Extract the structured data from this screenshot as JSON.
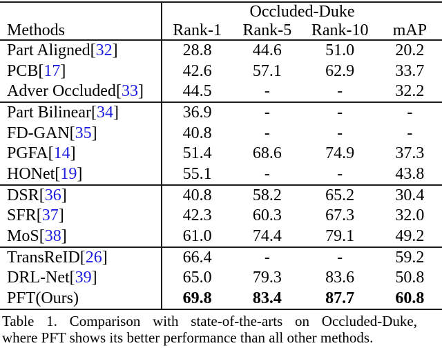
{
  "colors": {
    "citation": "#1c1ce0",
    "text": "#000000",
    "rule": "#1b1b1b",
    "background": "#ffffff"
  },
  "table": {
    "dataset_header": "Occluded-Duke",
    "columns": [
      "Methods",
      "Rank-1",
      "Rank-5",
      "Rank-10",
      "mAP"
    ],
    "groups": [
      {
        "rows": [
          {
            "method": "Part Aligned",
            "cite": "32",
            "values": [
              "28.8",
              "44.6",
              "51.0",
              "20.2"
            ],
            "bold": false
          },
          {
            "method": "PCB",
            "cite": "17",
            "values": [
              "42.6",
              "57.1",
              "62.9",
              "33.7"
            ],
            "bold": false
          },
          {
            "method": "Adver Occluded",
            "cite": "33",
            "values": [
              "44.5",
              "-",
              "-",
              "32.2"
            ],
            "bold": false
          }
        ]
      },
      {
        "rows": [
          {
            "method": "Part Bilinear",
            "cite": "34",
            "values": [
              "36.9",
              "-",
              "-",
              "-"
            ],
            "bold": false
          },
          {
            "method": "FD-GAN",
            "cite": "35",
            "values": [
              "40.8",
              "-",
              "-",
              "-"
            ],
            "bold": false
          },
          {
            "method": "PGFA",
            "cite": "14",
            "values": [
              "51.4",
              "68.6",
              "74.9",
              "37.3"
            ],
            "bold": false
          },
          {
            "method": "HONet",
            "cite": "19",
            "values": [
              "55.1",
              "-",
              "-",
              "43.8"
            ],
            "bold": false
          }
        ]
      },
      {
        "rows": [
          {
            "method": "DSR",
            "cite": "36",
            "values": [
              "40.8",
              "58.2",
              "65.2",
              "30.4"
            ],
            "bold": false
          },
          {
            "method": "SFR",
            "cite": "37",
            "values": [
              "42.3",
              "60.3",
              "67.3",
              "32.0"
            ],
            "bold": false
          },
          {
            "method": "MoS",
            "cite": "38",
            "values": [
              "61.0",
              "74.4",
              "79.1",
              "49.2"
            ],
            "bold": false
          }
        ]
      },
      {
        "rows": [
          {
            "method": "TransReID",
            "cite": "26",
            "values": [
              "66.4",
              "-",
              "-",
              "59.2"
            ],
            "bold": false
          },
          {
            "method": "DRL-Net",
            "cite": "39",
            "values": [
              "65.0",
              "79.3",
              "83.6",
              "50.8"
            ],
            "bold": false
          },
          {
            "method": "PFT(Ours)",
            "cite": null,
            "values": [
              "69.8",
              "83.4",
              "87.7",
              "60.8"
            ],
            "bold": true
          }
        ]
      }
    ]
  },
  "caption": {
    "line1": "Table 1. Comparison with state-of-the-arts on Occluded-Duke,",
    "line2": "where PFT shows its better performance than all other methods."
  }
}
